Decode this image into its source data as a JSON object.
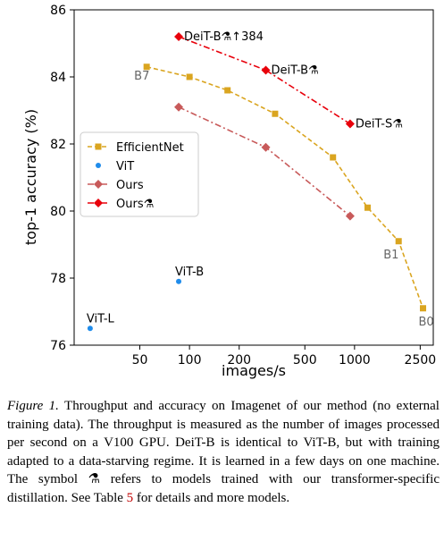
{
  "chart_data": {
    "type": "scatter",
    "xlabel": "images/s",
    "ylabel": "top-1 accuracy (%)",
    "xscale": "log",
    "xlim": [
      20,
      3000
    ],
    "ylim": [
      76,
      86
    ],
    "xticks": [
      50,
      100,
      200,
      500,
      1000,
      2500
    ],
    "yticks": [
      76,
      78,
      80,
      82,
      84,
      86
    ],
    "grid": false,
    "legend_position": "center-left",
    "series": [
      {
        "name": "EfficientNet",
        "color": "#daa520",
        "marker": "square",
        "line": "dashed",
        "x": [
          55,
          100,
          170,
          330,
          740,
          1200,
          1850,
          2600
        ],
        "y": [
          84.3,
          84.0,
          83.6,
          82.9,
          81.6,
          80.1,
          79.1,
          77.1
        ],
        "point_labels": [
          "B7",
          "",
          "",
          "",
          "",
          "",
          "B1",
          "B0"
        ]
      },
      {
        "name": "ViT",
        "color": "#1f8ceb",
        "marker": "circle",
        "line": "none",
        "x": [
          25,
          86
        ],
        "y": [
          76.5,
          77.9
        ],
        "point_labels": [
          "ViT-L",
          "ViT-B"
        ]
      },
      {
        "name": "Ours",
        "color": "#c85a5a",
        "marker": "diamond",
        "line": "dashdot",
        "x": [
          86,
          290,
          940
        ],
        "y": [
          83.1,
          81.9,
          79.85
        ],
        "point_labels": [
          "",
          "",
          ""
        ]
      },
      {
        "name": "Ours⚗",
        "color": "#e8000b",
        "marker": "diamond",
        "line": "dashdot",
        "x": [
          86,
          290,
          940
        ],
        "y": [
          85.2,
          84.2,
          82.6
        ],
        "point_labels": [
          "DeiT-B⚗↑384",
          "DeiT-B⚗",
          "DeiT-S⚗"
        ]
      }
    ]
  },
  "caption": {
    "label": "Figure 1.",
    "text_before_ref": " Throughput and accuracy on Imagenet of our method (no external training data). The throughput is measured as the number of images processed per second on a V100 GPU. DeiT-B is identical to ViT-B, but with training adapted to a data-starving regime. It is learned in a few days on one machine. The symbol ⚗ refers to models trained with our transformer-specific distillation. See Table ",
    "ref": "5",
    "text_after_ref": " for details and more models."
  }
}
